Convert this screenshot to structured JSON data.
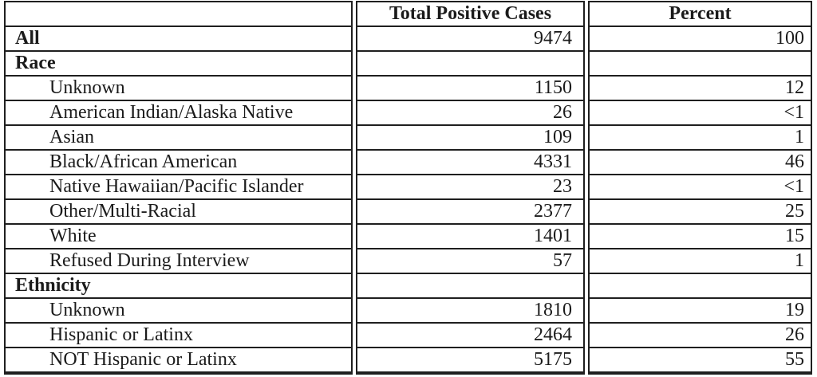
{
  "chart_data": {
    "type": "table",
    "columns": [
      "",
      "Total Positive Cases",
      "Percent"
    ],
    "rows": [
      {
        "label": "All",
        "cases": 9474,
        "percent": "100",
        "kind": "category"
      },
      {
        "label": "Race",
        "cases": "",
        "percent": "",
        "kind": "category"
      },
      {
        "label": "Unknown",
        "cases": 1150,
        "percent": "12",
        "kind": "sub"
      },
      {
        "label": "American Indian/Alaska Native",
        "cases": 26,
        "percent": "<1",
        "kind": "sub"
      },
      {
        "label": "Asian",
        "cases": 109,
        "percent": "1",
        "kind": "sub"
      },
      {
        "label": "Black/African American",
        "cases": 4331,
        "percent": "46",
        "kind": "sub"
      },
      {
        "label": "Native Hawaiian/Pacific Islander",
        "cases": 23,
        "percent": "<1",
        "kind": "sub"
      },
      {
        "label": "Other/Multi-Racial",
        "cases": 2377,
        "percent": "25",
        "kind": "sub"
      },
      {
        "label": "White",
        "cases": 1401,
        "percent": "15",
        "kind": "sub"
      },
      {
        "label": "Refused During Interview",
        "cases": 57,
        "percent": "1",
        "kind": "sub"
      },
      {
        "label": "Ethnicity",
        "cases": "",
        "percent": "",
        "kind": "category"
      },
      {
        "label": "Unknown",
        "cases": 1810,
        "percent": "19",
        "kind": "sub"
      },
      {
        "label": "Hispanic or Latinx",
        "cases": 2464,
        "percent": "26",
        "kind": "sub"
      },
      {
        "label": "NOT Hispanic or Latinx",
        "cases": 5175,
        "percent": "55",
        "kind": "sub"
      }
    ],
    "colors": {
      "border": "#1f1f1f",
      "text": "#1b1b1b",
      "background": "#ffffff"
    }
  }
}
